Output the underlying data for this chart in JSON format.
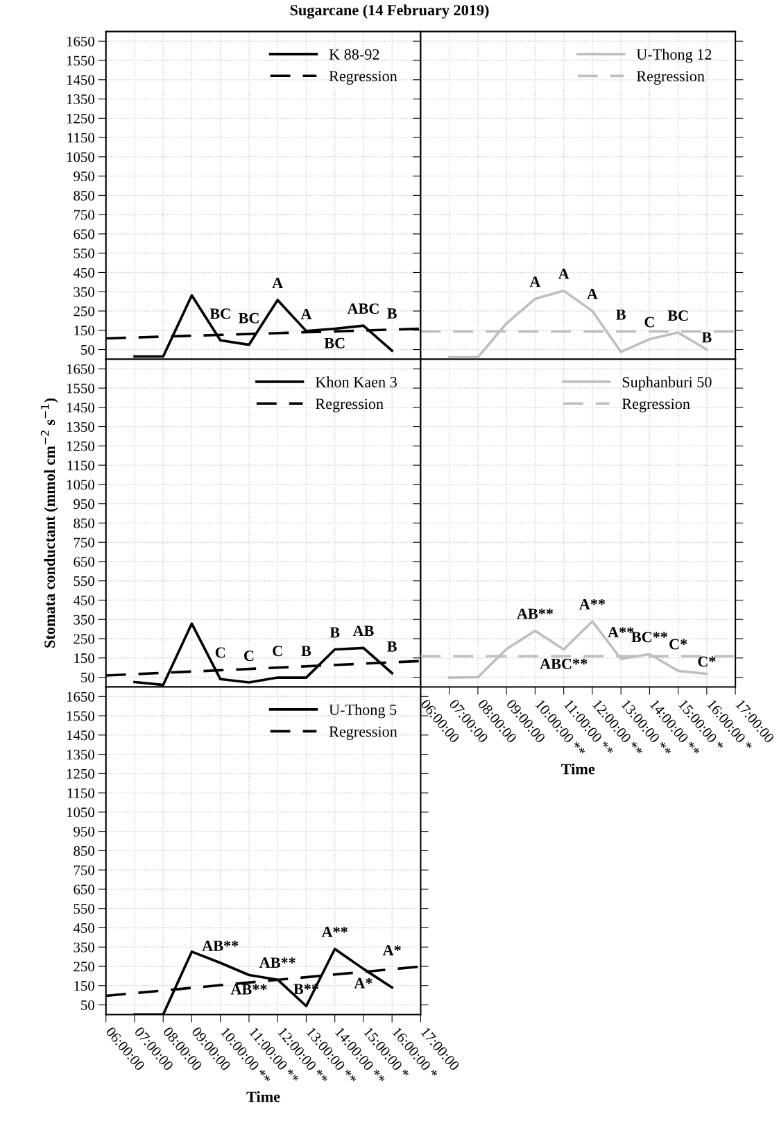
{
  "chart_data": [
    {
      "type": "line",
      "title": "Sugarcane (14 February 2019)",
      "xlim": [
        6,
        17
      ],
      "ylim": [
        0,
        1700
      ],
      "xticks": [
        {
          "value": 6,
          "label": null
        },
        {
          "value": 7,
          "label": null
        },
        {
          "value": 8,
          "label": null
        },
        {
          "value": 9,
          "label": null
        },
        {
          "value": 10,
          "label": null
        },
        {
          "value": 11,
          "label": null
        },
        {
          "value": 12,
          "label": null
        },
        {
          "value": 13,
          "label": null
        },
        {
          "value": 14,
          "label": null
        },
        {
          "value": 15,
          "label": null
        },
        {
          "value": 16,
          "label": null
        },
        {
          "value": 17,
          "label": null
        }
      ],
      "yticks": [
        50,
        150,
        250,
        350,
        450,
        550,
        650,
        750,
        850,
        950,
        1050,
        1150,
        1250,
        1350,
        1450,
        1550,
        1650
      ],
      "tick_labels": "y",
      "grid": true,
      "legend": "top right",
      "series": [
        {
          "name": "K 88-92",
          "color": "#000000",
          "line_style": "solid",
          "x": [
            7,
            8,
            9,
            10,
            11,
            12,
            13,
            14,
            15,
            16
          ],
          "values": [
            14,
            14,
            331,
            98,
            75,
            307,
            146,
            158,
            174,
            44
          ],
          "value_labels": [
            null,
            null,
            null,
            "BC",
            "BC",
            "A",
            "A",
            "BC",
            "ABC",
            "B"
          ]
        },
        {
          "name": "Regression",
          "color": "#000000",
          "line_style": "dashed",
          "x": [
            6,
            17
          ],
          "values": [
            108,
            158
          ]
        }
      ]
    },
    {
      "type": "line",
      "xlim": [
        6,
        17
      ],
      "ylim": [
        0,
        1700
      ],
      "xticks": [
        {
          "value": 6,
          "label": null
        },
        {
          "value": 7,
          "label": null
        },
        {
          "value": 8,
          "label": null
        },
        {
          "value": 9,
          "label": null
        },
        {
          "value": 10,
          "label": null
        },
        {
          "value": 11,
          "label": null
        },
        {
          "value": 12,
          "label": null
        },
        {
          "value": 13,
          "label": null
        },
        {
          "value": 14,
          "label": null
        },
        {
          "value": 15,
          "label": null
        },
        {
          "value": 16,
          "label": null
        },
        {
          "value": 17,
          "label": null
        }
      ],
      "yticks": [
        50,
        150,
        250,
        350,
        450,
        550,
        650,
        750,
        850,
        950,
        1050,
        1150,
        1250,
        1350,
        1450,
        1550,
        1650
      ],
      "tick_labels": false,
      "grid": true,
      "legend": "top right",
      "series": [
        {
          "name": "U-Thong 12",
          "color": "#bfbfbf",
          "line_style": "solid",
          "x": [
            7,
            8,
            9,
            10,
            11,
            12,
            13,
            14,
            15,
            16
          ],
          "values": [
            10,
            10,
            186,
            313,
            355,
            250,
            38,
            104,
            138,
            50
          ],
          "value_labels": [
            null,
            null,
            null,
            "A",
            "A",
            "A",
            "B",
            "C",
            "BC",
            "B"
          ]
        }
      ],
      "ref_lines": [
        {
          "axis": "y",
          "value": 144,
          "label": "Regression",
          "color": "#bfbfbf",
          "line_style": "dashed"
        }
      ]
    },
    {
      "type": "line",
      "ylabel": "Stomata conductant (mmol cm$^{−2}$ s$^{−1}$)",
      "xlim": [
        6,
        17
      ],
      "ylim": [
        0,
        1700
      ],
      "xticks": [
        {
          "value": 6,
          "label": null
        },
        {
          "value": 7,
          "label": null
        },
        {
          "value": 8,
          "label": null
        },
        {
          "value": 9,
          "label": null
        },
        {
          "value": 10,
          "label": null
        },
        {
          "value": 11,
          "label": null
        },
        {
          "value": 12,
          "label": null
        },
        {
          "value": 13,
          "label": null
        },
        {
          "value": 14,
          "label": null
        },
        {
          "value": 15,
          "label": null
        },
        {
          "value": 16,
          "label": null
        },
        {
          "value": 17,
          "label": null
        }
      ],
      "yticks": [
        50,
        150,
        250,
        350,
        450,
        550,
        650,
        750,
        850,
        950,
        1050,
        1150,
        1250,
        1350,
        1450,
        1550,
        1650
      ],
      "tick_labels": "y",
      "grid": true,
      "legend": "top right",
      "series": [
        {
          "name": "Khon Kaen 3",
          "color": "#000000",
          "line_style": "solid",
          "x": [
            7,
            8,
            9,
            10,
            11,
            12,
            13,
            14,
            15,
            16
          ],
          "values": [
            25,
            10,
            328,
            40,
            23,
            48,
            48,
            194,
            202,
            71
          ],
          "value_labels": [
            null,
            null,
            null,
            "C",
            "C",
            "C",
            "B",
            "B",
            "AB",
            "B"
          ]
        },
        {
          "name": "Regression",
          "color": "#000000",
          "line_style": "dashed",
          "x": [
            6,
            17
          ],
          "values": [
            59,
            134
          ]
        }
      ]
    },
    {
      "type": "line",
      "xlabel": "Time",
      "xlim": [
        6,
        17
      ],
      "ylim": [
        0,
        1700
      ],
      "xticks": [
        {
          "value": 6,
          "label": "06:00:00"
        },
        {
          "value": 7,
          "label": "07:00:00"
        },
        {
          "value": 8,
          "label": "08:00:00"
        },
        {
          "value": 9,
          "label": "09:00:00"
        },
        {
          "value": 10,
          "label": "10:00:00 **"
        },
        {
          "value": 11,
          "label": "11:00:00 **"
        },
        {
          "value": 12,
          "label": "12:00:00 **"
        },
        {
          "value": 13,
          "label": "13:00:00 **"
        },
        {
          "value": 14,
          "label": "14:00:00 **"
        },
        {
          "value": 15,
          "label": "15:00:00 *"
        },
        {
          "value": 16,
          "label": "16:00:00 *"
        },
        {
          "value": 17,
          "label": "17:00:00"
        }
      ],
      "yticks": [
        50,
        150,
        250,
        350,
        450,
        550,
        650,
        750,
        850,
        950,
        1050,
        1150,
        1250,
        1350,
        1450,
        1550,
        1650
      ],
      "tick_labels": "x",
      "grid": true,
      "legend": "top right",
      "series": [
        {
          "name": "Suphanburi 50",
          "color": "#bfbfbf",
          "line_style": "solid",
          "x": [
            7,
            8,
            9,
            10,
            11,
            12,
            13,
            14,
            15,
            16
          ],
          "values": [
            48,
            50,
            196,
            291,
            194,
            340,
            145,
            170,
            83,
            68
          ],
          "value_labels": [
            null,
            null,
            null,
            "AB**",
            "ABC**",
            "A**",
            "A**",
            "BC**",
            "C*",
            "C*"
          ]
        },
        {
          "name": "Regression",
          "color": "#bfbfbf",
          "line_style": "dashed",
          "x": [
            6,
            17
          ],
          "values": [
            159,
            159
          ]
        }
      ]
    },
    {
      "type": "line",
      "xlabel": "Time",
      "xlim": [
        6,
        17
      ],
      "ylim": [
        0,
        1700
      ],
      "xticks": [
        {
          "value": 6,
          "label": "06:00:00"
        },
        {
          "value": 7,
          "label": "07:00:00"
        },
        {
          "value": 8,
          "label": "08:00:00"
        },
        {
          "value": 9,
          "label": "09:00:00"
        },
        {
          "value": 10,
          "label": "10:00:00 **"
        },
        {
          "value": 11,
          "label": "11:00:00 **"
        },
        {
          "value": 12,
          "label": "12:00:00 **"
        },
        {
          "value": 13,
          "label": "13:00:00 **"
        },
        {
          "value": 14,
          "label": "14:00:00 **"
        },
        {
          "value": 15,
          "label": "15:00:00 *"
        },
        {
          "value": 16,
          "label": "16:00:00 *"
        },
        {
          "value": 17,
          "label": "17:00:00"
        }
      ],
      "yticks": [
        50,
        150,
        250,
        350,
        450,
        550,
        650,
        750,
        850,
        950,
        1050,
        1150,
        1250,
        1350,
        1450,
        1550,
        1650
      ],
      "grid": true,
      "legend": "top right",
      "series": [
        {
          "name": "U-Thong 5",
          "color": "#000000",
          "line_style": "solid",
          "x": [
            7,
            8,
            9,
            10,
            11,
            12,
            13,
            14,
            15,
            16
          ],
          "values": [
            0,
            0,
            326,
            268,
            205,
            181,
            44,
            340,
            237,
            140
          ],
          "value_labels": [
            null,
            null,
            null,
            "AB**",
            "AB**",
            "AB**",
            "B**",
            "A**",
            "A*",
            "A*"
          ]
        },
        {
          "name": "Regression",
          "color": "#000000",
          "line_style": "dashed",
          "x": [
            6,
            17
          ],
          "values": [
            97,
            249
          ]
        }
      ]
    }
  ]
}
